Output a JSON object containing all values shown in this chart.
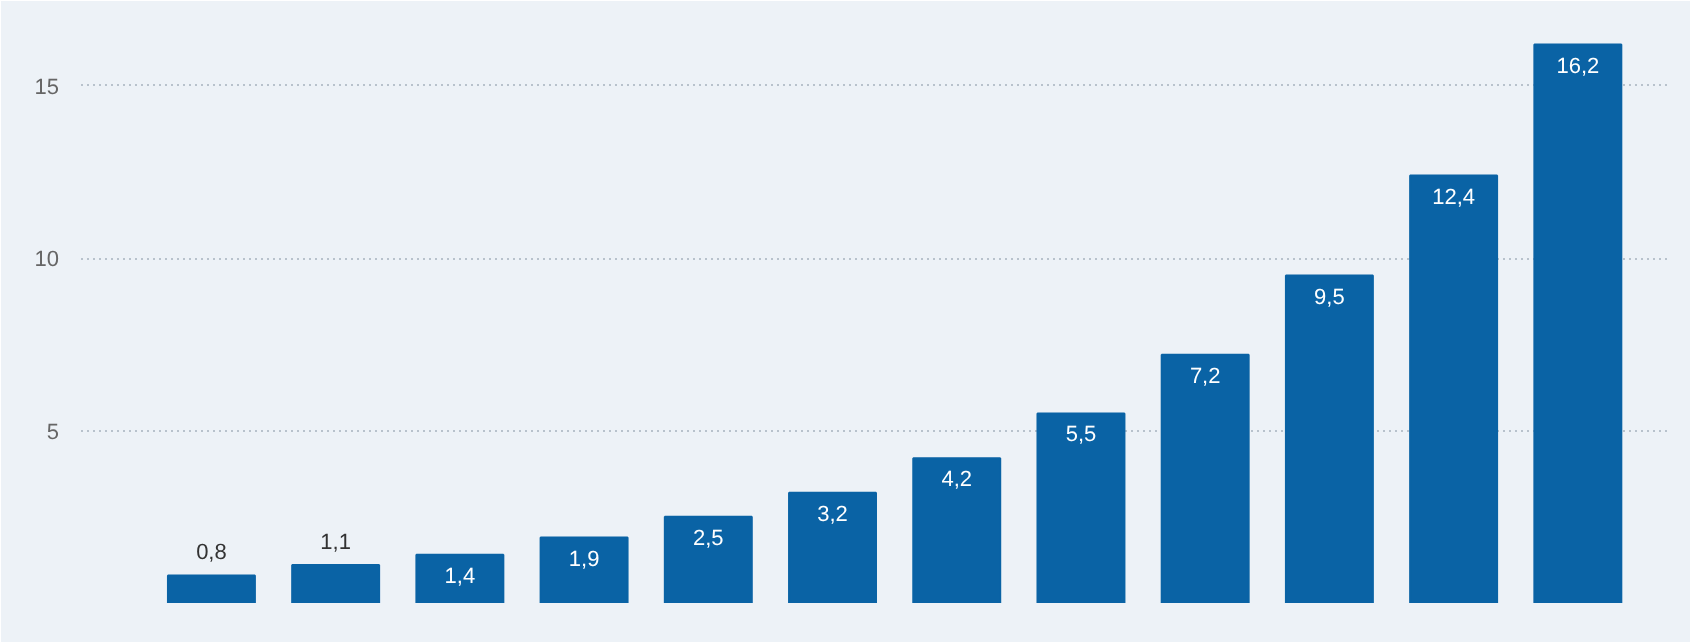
{
  "chart_data": {
    "type": "bar",
    "categories": [
      null,
      null,
      null,
      null,
      null,
      null,
      null,
      null,
      null,
      null,
      null,
      null
    ],
    "values": [
      0.8,
      1.1,
      1.4,
      1.9,
      2.5,
      3.2,
      4.2,
      5.5,
      7.2,
      9.5,
      12.4,
      16.2
    ],
    "value_labels": [
      "0,8",
      "1,1",
      "1,4",
      "1,9",
      "2,5",
      "3,2",
      "4,2",
      "5,5",
      "7,2",
      "9,5",
      "12,4",
      "16,2"
    ],
    "color": "#0a63a5",
    "ylim": [
      0,
      17
    ],
    "yticks": [
      5,
      10,
      15
    ],
    "grid": "y"
  }
}
